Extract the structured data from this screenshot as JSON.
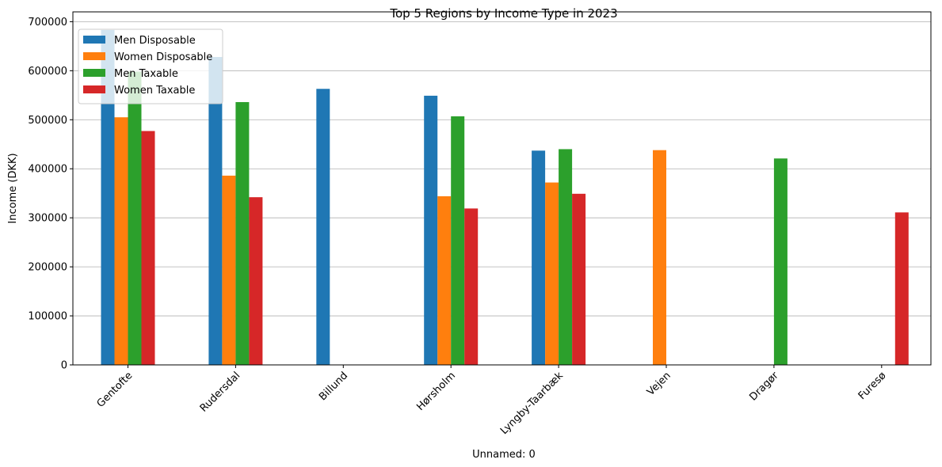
{
  "chart_data": {
    "type": "bar",
    "title": "Top 5 Regions by Income Type in 2023",
    "xlabel": "Unnamed: 0",
    "ylabel": "Income (DKK)",
    "ylim": [
      0,
      720000
    ],
    "yticks": [
      0,
      100000,
      200000,
      300000,
      400000,
      500000,
      600000,
      700000
    ],
    "ytick_labels": [
      "0",
      "100000",
      "200000",
      "300000",
      "400000",
      "500000",
      "600000",
      "700000"
    ],
    "grid": "y",
    "legend_position": "top-left",
    "categories": [
      "Gentofte",
      "Rudersdal",
      "Billund",
      "Hørsholm",
      "Lyngby-Taarbæk",
      "Vejen",
      "Dragør",
      "Furesø"
    ],
    "series": [
      {
        "name": "Men Disposable",
        "color": "#1f77b4",
        "values": [
          683000,
          628000,
          563000,
          549000,
          437000,
          null,
          null,
          null
        ]
      },
      {
        "name": "Women Disposable",
        "color": "#ff7f0e",
        "values": [
          505000,
          386000,
          null,
          344000,
          372000,
          438000,
          null,
          null
        ]
      },
      {
        "name": "Men Taxable",
        "color": "#2ca02c",
        "values": [
          598000,
          536000,
          null,
          507000,
          440000,
          null,
          421000,
          null
        ]
      },
      {
        "name": "Women Taxable",
        "color": "#d62728",
        "values": [
          477000,
          342000,
          null,
          319000,
          349000,
          null,
          null,
          311000
        ]
      }
    ]
  }
}
